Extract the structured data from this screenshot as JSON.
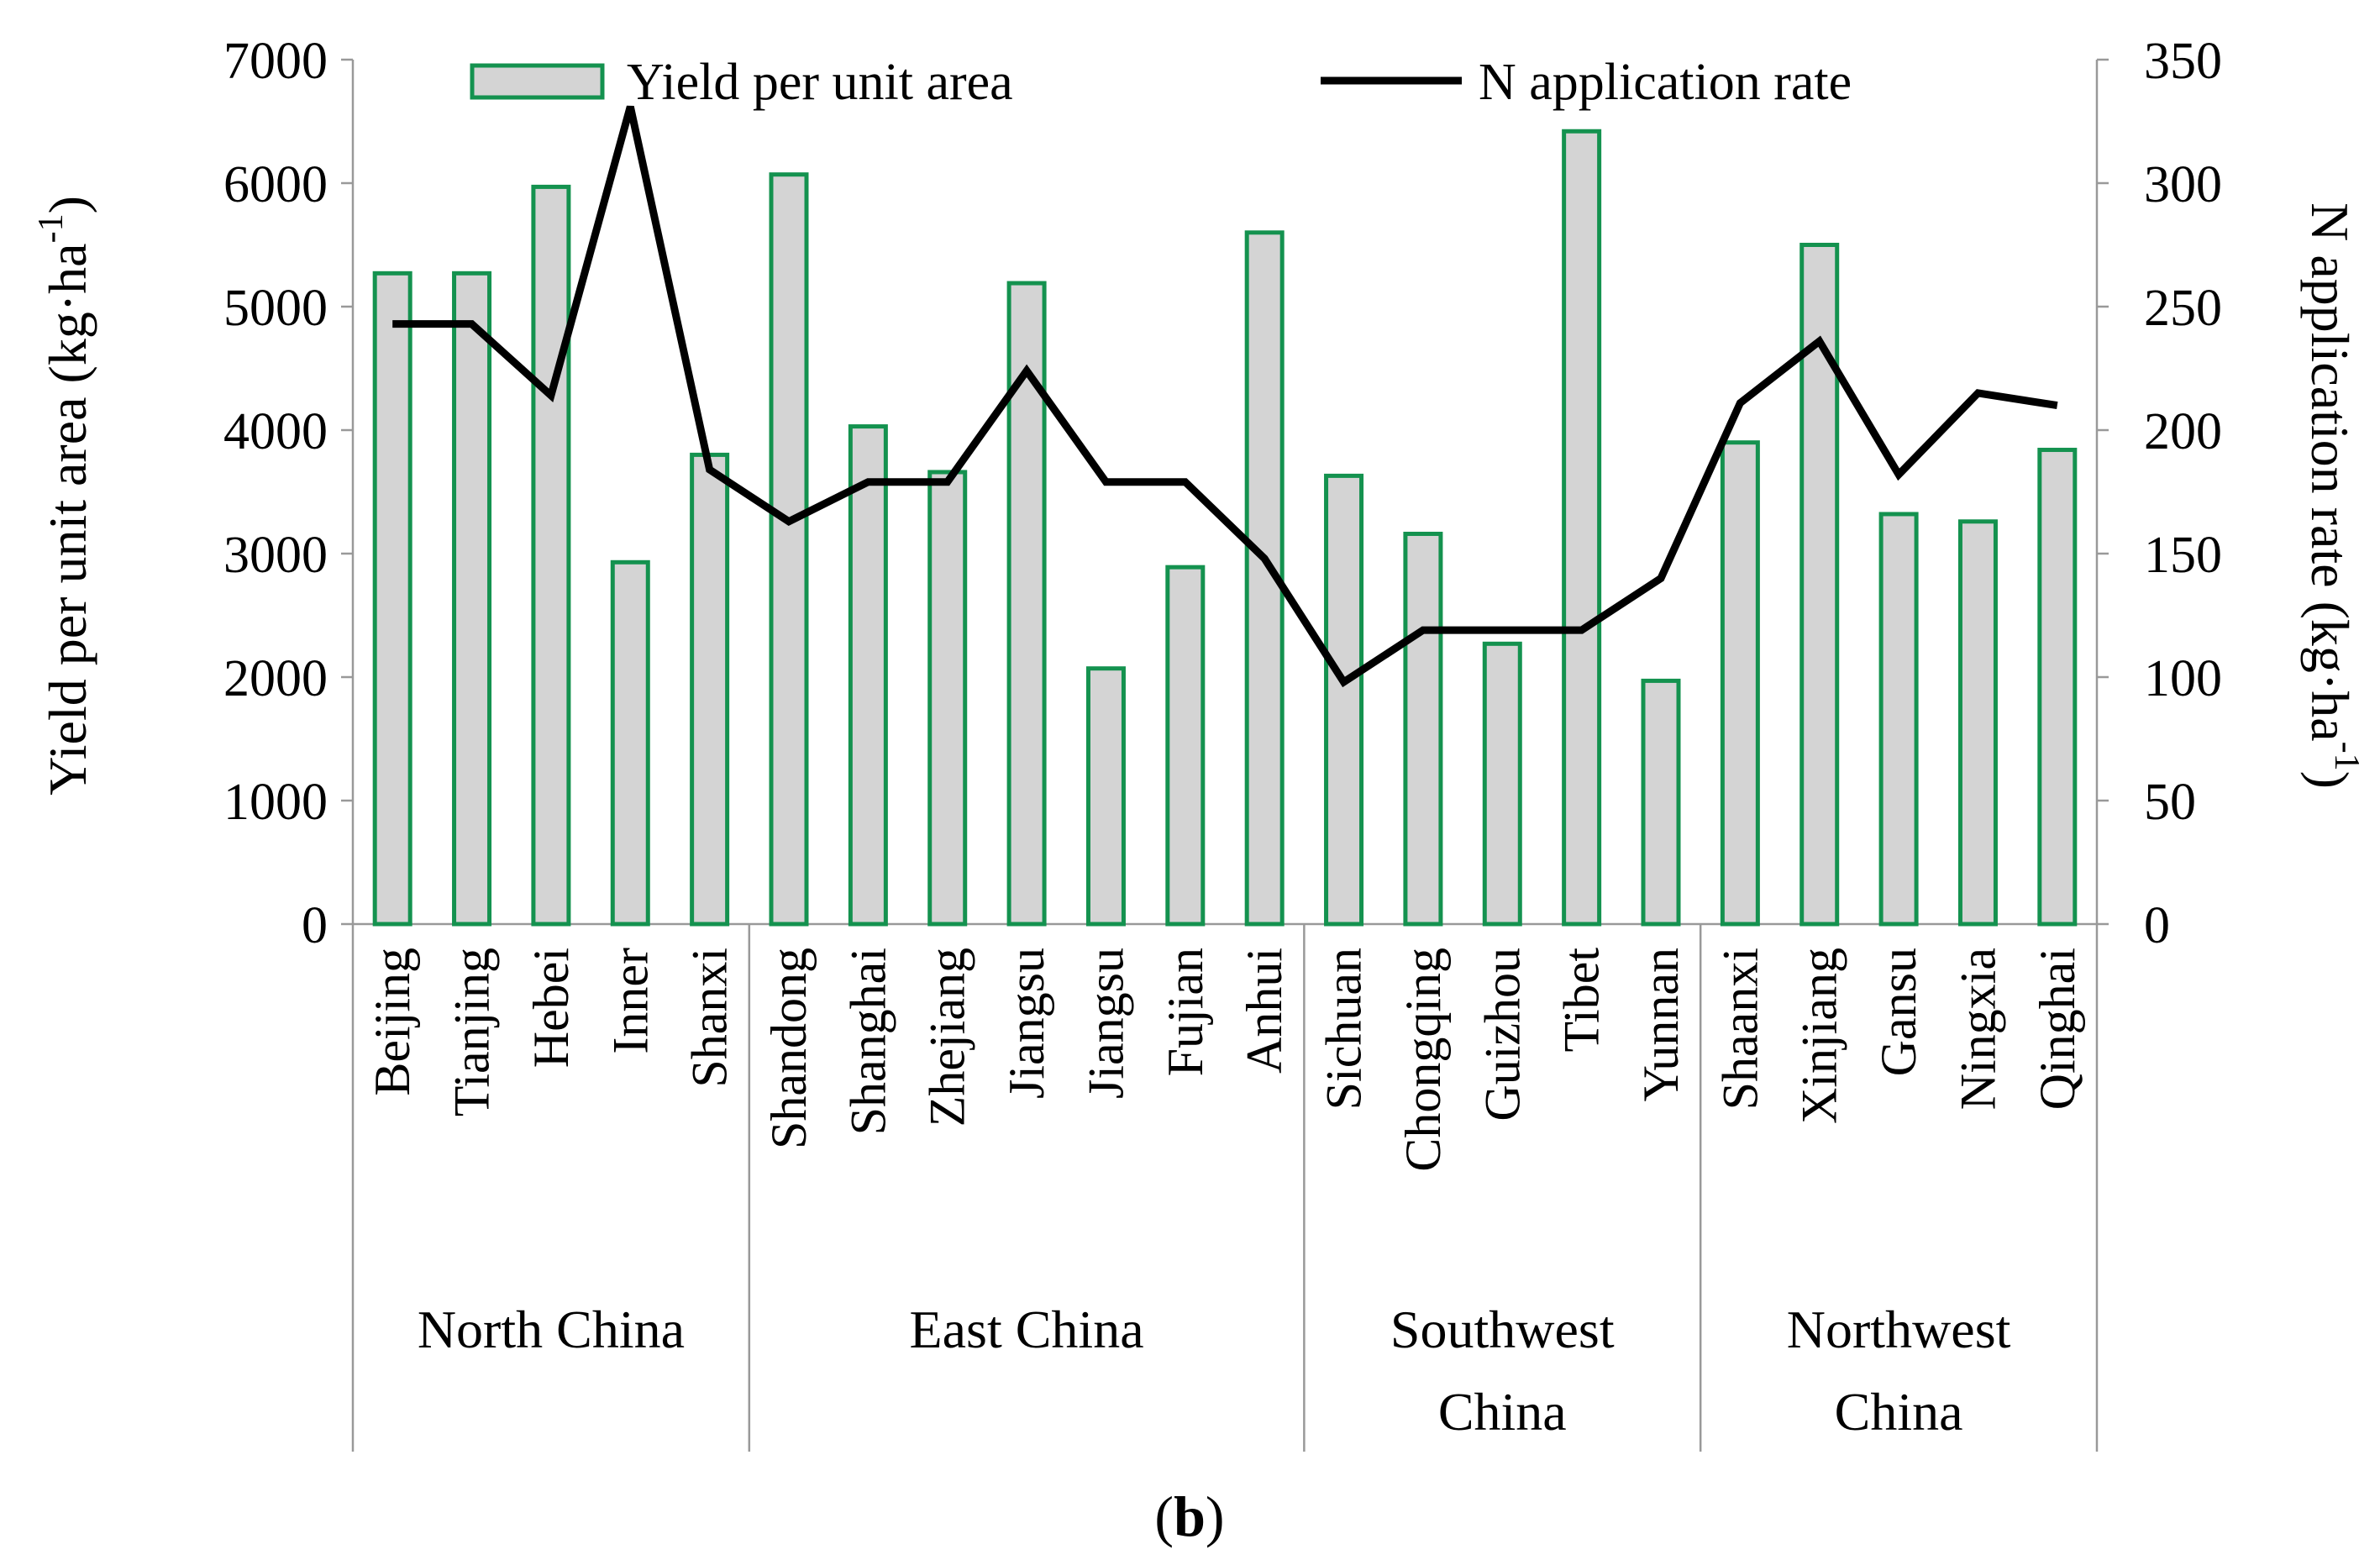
{
  "chart_data": {
    "type": "bar",
    "categories": [
      "Beijing",
      "Tianjing",
      "Hebei",
      "Inner",
      "Shanxi",
      "Shandong",
      "Shanghai",
      "Zhejiang",
      "Jiangsu",
      "Jiangsu",
      "Fujian",
      "Anhui",
      "Sichuan",
      "Chongqing",
      "Guizhou",
      "Tibet",
      "Yunnan",
      "Shaanxi",
      "Xinjiang",
      "Gansu",
      "Ningxia",
      "Qinghai"
    ],
    "regions": [
      {
        "name": [
          "North China"
        ],
        "start": 0,
        "end": 4
      },
      {
        "name": [
          "East China"
        ],
        "start": 5,
        "end": 11
      },
      {
        "name": [
          "Southwest",
          "China"
        ],
        "start": 12,
        "end": 16
      },
      {
        "name": [
          "Northwest",
          "China"
        ],
        "start": 17,
        "end": 21
      }
    ],
    "series": [
      {
        "name": "Yield per unit area",
        "type": "bar",
        "axis": "left",
        "color": "#14924f",
        "fill": "#d4d4d4",
        "values": [
          5270,
          5270,
          5970,
          2930,
          3800,
          6070,
          4030,
          3660,
          5190,
          2070,
          2890,
          5600,
          3630,
          3160,
          2270,
          6420,
          1970,
          3900,
          5500,
          3320,
          3260,
          3840
        ]
      },
      {
        "name": "N application rate",
        "type": "line",
        "axis": "right",
        "color": "#000000",
        "values": [
          243,
          243,
          214,
          331,
          184,
          163,
          179,
          179,
          224,
          179,
          179,
          148,
          98,
          119,
          119,
          119,
          140,
          211,
          236,
          182,
          215,
          210
        ]
      }
    ],
    "ylabel_left": "Yield per unit area (kg·ha",
    "ylabel_left_sup": "-1",
    "ylabel_left_close": ")",
    "ylabel_right": "N application rate (kg·ha",
    "ylabel_right_sup": "-1",
    "ylabel_right_close": ")",
    "ylim_left": [
      0,
      7000
    ],
    "yticks_left": [
      0,
      1000,
      2000,
      3000,
      4000,
      5000,
      6000,
      7000
    ],
    "ylim_right": [
      0,
      350
    ],
    "yticks_right": [
      0,
      50,
      100,
      150,
      200,
      250,
      300,
      350
    ],
    "legend_position": "top"
  },
  "figure_label": {
    "open": "(",
    "letter": "b",
    "close": ")"
  }
}
